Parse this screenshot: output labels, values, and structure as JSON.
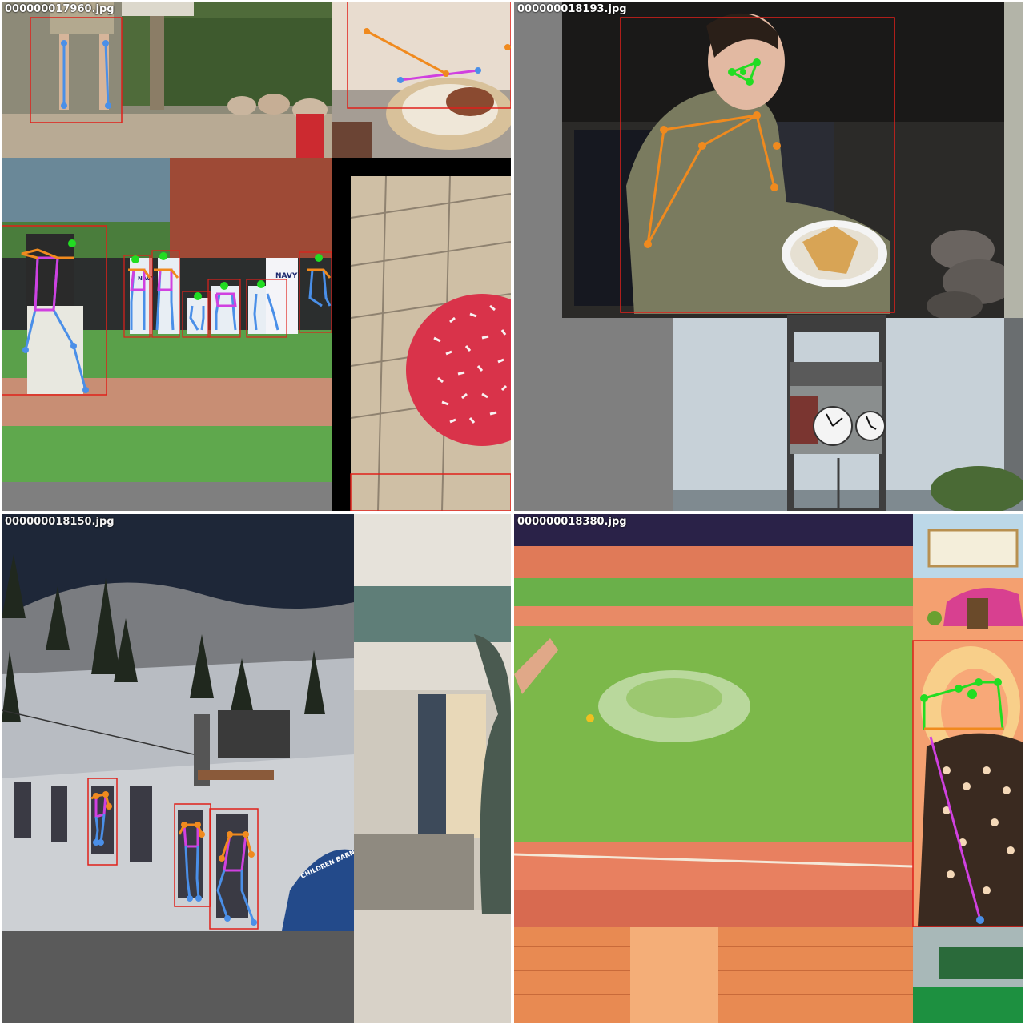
{
  "mosaics": [
    {
      "id": "top-left",
      "filename": "000000017960.jpg",
      "filename_visible": "000000█1796█.jpg",
      "content": "baseball dugout, batter, paving stones and frosted donut"
    },
    {
      "id": "top-right",
      "filename": "000000018193.jpg",
      "content": "woman eating in camp chair, clock tower"
    },
    {
      "id": "bottom-left",
      "filename": "000000018150.jpg",
      "content": "ski slope with children at lift, building facade"
    },
    {
      "id": "bottom-right",
      "filename": "000000018380.jpg",
      "content": "sprinkler on baseball field, smiling woman"
    }
  ],
  "labels": {
    "tl_name": "000000017960.jpg",
    "tr_name": "000000018193.jpg",
    "bl_name": "000000018150.jpg",
    "br_name": "000000018380.jpg",
    "navy_1": "NAVY",
    "navy_2": "NAVY",
    "banner": "CHILDREN BARN"
  },
  "colors": {
    "bbox": "#e0201a",
    "kp_head": "#22dd22",
    "kp_arm": "#f08a1e",
    "kp_leg": "#4a8fe8",
    "kp_torso": "#d040e0",
    "pad": "#7f7f7f"
  }
}
